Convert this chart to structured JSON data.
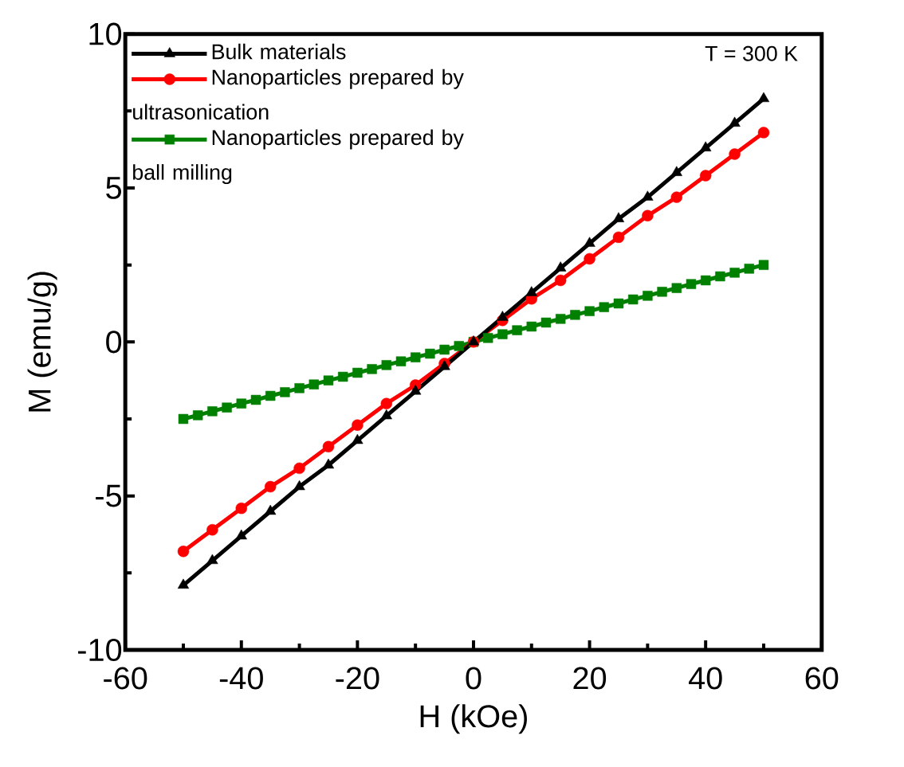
{
  "chart_data": {
    "type": "line",
    "xlabel": "H (kOe)",
    "ylabel": "M (emu/g)",
    "xlim": [
      -60,
      60
    ],
    "xticks": [
      -60,
      -40,
      -20,
      0,
      20,
      40,
      60
    ],
    "ylim": [
      -10,
      10
    ],
    "yticks": [
      -10,
      -5,
      0,
      5,
      10
    ],
    "grid": false,
    "legend": "top left",
    "line_style": "solid",
    "annotations": [
      "T = 300 K"
    ],
    "series": [
      {
        "name": "Bulk materials",
        "color": "#000000",
        "marker": "triangle",
        "x": [
          -50,
          -45,
          -40,
          -35,
          -30,
          -25,
          -20,
          -15,
          -10,
          -5,
          0,
          5,
          10,
          15,
          20,
          25,
          30,
          35,
          40,
          45,
          50
        ],
        "values": [
          -7.9,
          -7.1,
          -6.3,
          -5.5,
          -4.7,
          -4.0,
          -3.2,
          -2.4,
          -1.6,
          -0.8,
          0,
          0.8,
          1.6,
          2.4,
          3.2,
          4.0,
          4.7,
          5.5,
          6.3,
          7.1,
          7.9
        ]
      },
      {
        "name": "Nanoparticles prepared by ultrasonication",
        "color": "#ff0000",
        "marker": "circle",
        "x": [
          -50,
          -45,
          -40,
          -35,
          -30,
          -25,
          -20,
          -15,
          -10,
          -5,
          0,
          5,
          10,
          15,
          20,
          25,
          30,
          35,
          40,
          45,
          50
        ],
        "values": [
          -6.8,
          -6.1,
          -5.4,
          -4.7,
          -4.1,
          -3.4,
          -2.7,
          -2.0,
          -1.4,
          -0.7,
          0,
          0.7,
          1.4,
          2.0,
          2.7,
          3.4,
          4.1,
          4.7,
          5.4,
          6.1,
          6.8
        ]
      },
      {
        "name": "Nanoparticles prepared by ball milling",
        "color": "#008000",
        "marker": "square",
        "x": [
          -50,
          -47.5,
          -45,
          -42.5,
          -40,
          -37.5,
          -35,
          -32.5,
          -30,
          -27.5,
          -25,
          -22.5,
          -20,
          -17.5,
          -15,
          -12.5,
          -10,
          -7.5,
          -5,
          -2.5,
          0,
          2.5,
          5,
          7.5,
          10,
          12.5,
          15,
          17.5,
          20,
          22.5,
          25,
          27.5,
          30,
          32.5,
          35,
          37.5,
          40,
          42.5,
          45,
          47.5,
          50
        ],
        "values": [
          -2.5,
          -2.38,
          -2.25,
          -2.13,
          -2.0,
          -1.88,
          -1.75,
          -1.63,
          -1.5,
          -1.38,
          -1.25,
          -1.13,
          -1.0,
          -0.88,
          -0.75,
          -0.63,
          -0.5,
          -0.38,
          -0.25,
          -0.13,
          0,
          0.13,
          0.25,
          0.38,
          0.5,
          0.63,
          0.75,
          0.88,
          1.0,
          1.13,
          1.25,
          1.38,
          1.5,
          1.63,
          1.75,
          1.88,
          2.0,
          2.13,
          2.25,
          2.38,
          2.5
        ]
      }
    ]
  }
}
